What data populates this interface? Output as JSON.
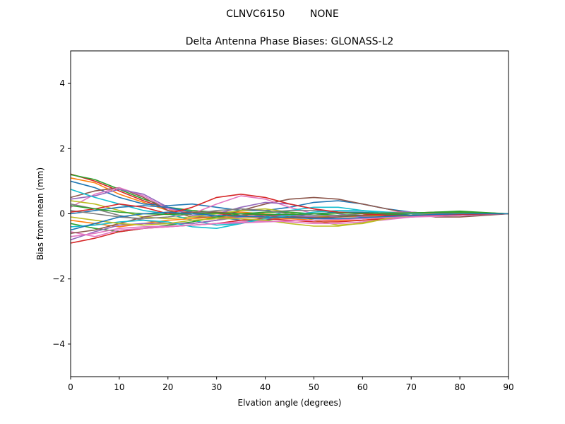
{
  "figure": {
    "suptitle": "CLNVC6150        NONE"
  },
  "chart_data": {
    "type": "line",
    "title": "Delta Antenna Phase Biases: GLONASS-L2",
    "xlabel": "Elvation angle (degrees)",
    "ylabel": "Bias from mean (mm)",
    "xlim": [
      0,
      90
    ],
    "ylim": [
      -5,
      5
    ],
    "xticks": [
      0,
      10,
      20,
      30,
      40,
      50,
      60,
      70,
      80,
      90
    ],
    "yticks": [
      -4,
      -2,
      0,
      2,
      4
    ],
    "ytick_labels": [
      "−4",
      "−2",
      "0",
      "2",
      "4"
    ],
    "grid": false,
    "legend": "none",
    "x": [
      0,
      5,
      10,
      15,
      20,
      25,
      30,
      35,
      40,
      45,
      50,
      55,
      60,
      65,
      70,
      75,
      80,
      85,
      90
    ],
    "series": [
      {
        "color": "#d62728",
        "values": [
          1.22,
          1.0,
          0.7,
          0.4,
          0.15,
          0.05,
          0.0,
          -0.05,
          -0.1,
          -0.12,
          -0.12,
          -0.1,
          -0.05,
          0.0,
          0.02,
          0.05,
          0.05,
          0.03,
          0.0
        ]
      },
      {
        "color": "#2ca02c",
        "values": [
          1.2,
          1.05,
          0.75,
          0.45,
          0.2,
          0.1,
          0.05,
          0.0,
          -0.05,
          -0.1,
          -0.1,
          -0.08,
          -0.05,
          -0.02,
          0.02,
          0.05,
          0.08,
          0.04,
          0.0
        ]
      },
      {
        "color": "#ff7f0e",
        "values": [
          1.1,
          0.95,
          0.6,
          0.35,
          0.1,
          0.05,
          0.05,
          0.05,
          0.0,
          -0.05,
          -0.1,
          -0.1,
          -0.08,
          -0.05,
          0.0,
          0.02,
          0.04,
          0.02,
          0.0
        ]
      },
      {
        "color": "#1f77b4",
        "values": [
          1.0,
          0.8,
          0.5,
          0.3,
          0.25,
          0.3,
          0.2,
          0.1,
          0.1,
          0.2,
          0.35,
          0.4,
          0.3,
          0.15,
          0.05,
          0.0,
          -0.05,
          -0.03,
          0.0
        ]
      },
      {
        "color": "#8c564b",
        "values": [
          0.5,
          0.7,
          0.8,
          0.5,
          0.1,
          -0.1,
          -0.1,
          0.1,
          0.3,
          0.45,
          0.5,
          0.45,
          0.3,
          0.15,
          0.0,
          -0.1,
          -0.1,
          -0.05,
          0.0
        ]
      },
      {
        "color": "#e377c2",
        "values": [
          0.2,
          0.6,
          0.8,
          0.55,
          0.15,
          0.0,
          0.3,
          0.55,
          0.45,
          0.2,
          0.0,
          -0.1,
          -0.05,
          0.05,
          0.05,
          0.0,
          -0.05,
          -0.02,
          0.0
        ]
      },
      {
        "color": "#9467bd",
        "values": [
          0.45,
          0.55,
          0.75,
          0.6,
          0.2,
          -0.05,
          0.0,
          0.2,
          0.35,
          0.3,
          0.15,
          0.0,
          -0.1,
          -0.1,
          -0.05,
          0.0,
          0.02,
          0.01,
          0.0
        ]
      },
      {
        "color": "#bcbd22",
        "values": [
          0.4,
          0.3,
          0.1,
          -0.1,
          -0.15,
          -0.1,
          0.0,
          0.1,
          0.15,
          0.05,
          -0.2,
          -0.35,
          -0.3,
          -0.15,
          -0.05,
          0.0,
          0.02,
          0.01,
          0.0
        ]
      },
      {
        "color": "#17becf",
        "values": [
          0.75,
          0.5,
          0.3,
          0.1,
          0.0,
          -0.2,
          -0.35,
          -0.3,
          -0.1,
          0.1,
          0.2,
          0.2,
          0.1,
          0.0,
          -0.05,
          -0.05,
          -0.03,
          -0.02,
          0.0
        ]
      },
      {
        "color": "#7f7f7f",
        "values": [
          0.3,
          0.15,
          -0.05,
          -0.2,
          -0.3,
          -0.3,
          -0.2,
          -0.05,
          0.05,
          0.1,
          0.1,
          0.05,
          0.0,
          -0.05,
          -0.08,
          -0.08,
          -0.05,
          -0.02,
          0.0
        ]
      },
      {
        "color": "#1f77b4",
        "values": [
          0.0,
          0.1,
          0.2,
          0.25,
          0.2,
          0.05,
          -0.1,
          -0.2,
          -0.2,
          -0.1,
          0.0,
          0.05,
          0.05,
          0.0,
          -0.05,
          -0.05,
          -0.03,
          -0.01,
          0.0
        ]
      },
      {
        "color": "#ff7f0e",
        "values": [
          -0.2,
          -0.3,
          -0.4,
          -0.3,
          -0.2,
          -0.15,
          -0.1,
          -0.1,
          -0.12,
          -0.15,
          -0.2,
          -0.22,
          -0.2,
          -0.12,
          -0.05,
          0.0,
          0.02,
          0.01,
          0.0
        ]
      },
      {
        "color": "#2ca02c",
        "values": [
          -0.3,
          -0.45,
          -0.55,
          -0.45,
          -0.35,
          -0.25,
          -0.1,
          0.0,
          0.05,
          0.05,
          0.0,
          -0.05,
          -0.05,
          -0.02,
          0.0,
          0.02,
          0.03,
          0.01,
          0.0
        ]
      },
      {
        "color": "#d62728",
        "values": [
          -0.9,
          -0.75,
          -0.55,
          -0.45,
          -0.4,
          -0.35,
          -0.3,
          -0.2,
          -0.15,
          -0.2,
          -0.25,
          -0.25,
          -0.2,
          -0.15,
          -0.1,
          -0.05,
          0.0,
          0.0,
          0.0
        ]
      },
      {
        "color": "#9467bd",
        "values": [
          -0.8,
          -0.55,
          -0.35,
          -0.3,
          -0.3,
          -0.3,
          -0.2,
          -0.1,
          -0.05,
          -0.05,
          -0.1,
          -0.15,
          -0.15,
          -0.1,
          -0.05,
          0.0,
          0.02,
          0.01,
          0.0
        ]
      },
      {
        "color": "#e377c2",
        "values": [
          -0.55,
          -0.7,
          -0.5,
          -0.45,
          -0.4,
          -0.35,
          -0.3,
          -0.25,
          -0.22,
          -0.25,
          -0.3,
          -0.3,
          -0.25,
          -0.18,
          -0.1,
          -0.05,
          0.0,
          0.0,
          0.0
        ]
      },
      {
        "color": "#8c564b",
        "values": [
          -0.6,
          -0.5,
          -0.3,
          -0.1,
          0.0,
          0.05,
          0.05,
          0.0,
          -0.05,
          -0.1,
          -0.12,
          -0.1,
          -0.05,
          0.0,
          0.02,
          0.02,
          0.01,
          0.0,
          0.0
        ]
      },
      {
        "color": "#17becf",
        "values": [
          -0.4,
          -0.35,
          -0.25,
          -0.2,
          -0.25,
          -0.4,
          -0.45,
          -0.3,
          -0.15,
          -0.05,
          0.05,
          0.1,
          0.1,
          0.05,
          0.0,
          -0.02,
          -0.02,
          -0.01,
          0.0
        ]
      },
      {
        "color": "#bcbd22",
        "values": [
          -0.1,
          -0.2,
          -0.3,
          -0.35,
          -0.3,
          -0.2,
          -0.15,
          -0.15,
          -0.2,
          -0.3,
          -0.38,
          -0.38,
          -0.28,
          -0.15,
          -0.05,
          0.0,
          0.02,
          0.01,
          0.0
        ]
      },
      {
        "color": "#7f7f7f",
        "values": [
          0.1,
          0.0,
          -0.1,
          -0.15,
          -0.1,
          0.0,
          0.1,
          0.15,
          0.1,
          0.0,
          -0.05,
          -0.05,
          0.0,
          0.02,
          0.02,
          0.01,
          0.0,
          0.0,
          0.0
        ]
      },
      {
        "color": "#e377c2",
        "values": [
          -0.7,
          -0.6,
          -0.45,
          -0.4,
          -0.38,
          -0.35,
          -0.3,
          -0.28,
          -0.25,
          -0.22,
          -0.2,
          -0.18,
          -0.15,
          -0.12,
          -0.1,
          -0.08,
          -0.05,
          -0.02,
          0.0
        ]
      },
      {
        "color": "#d62728",
        "values": [
          0.05,
          0.15,
          0.3,
          0.2,
          0.0,
          0.2,
          0.5,
          0.6,
          0.5,
          0.3,
          0.15,
          0.05,
          0.0,
          -0.05,
          -0.05,
          -0.03,
          -0.02,
          -0.01,
          0.0
        ]
      },
      {
        "color": "#2ca02c",
        "values": [
          0.25,
          0.15,
          0.05,
          0.0,
          -0.02,
          0.0,
          0.02,
          0.0,
          -0.02,
          -0.02,
          0.0,
          0.02,
          0.02,
          0.02,
          0.03,
          0.04,
          0.05,
          0.03,
          0.0
        ]
      },
      {
        "color": "#1f77b4",
        "values": [
          -0.5,
          -0.3,
          -0.1,
          0.0,
          0.05,
          0.0,
          -0.05,
          -0.08,
          -0.1,
          -0.12,
          -0.15,
          -0.15,
          -0.12,
          -0.08,
          -0.05,
          -0.02,
          0.0,
          0.0,
          0.0
        ]
      }
    ]
  }
}
